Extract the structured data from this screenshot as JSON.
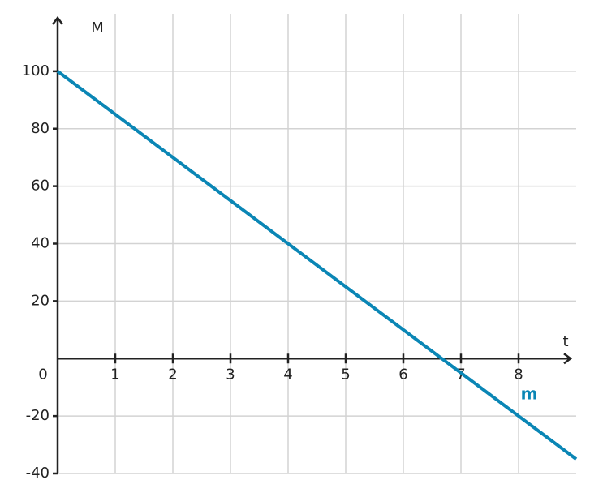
{
  "chart_data": {
    "type": "line",
    "x_label": "t",
    "y_label": "M",
    "x": [
      0,
      9
    ],
    "series": [
      {
        "name": "m",
        "color": "#0a86b5",
        "values": [
          100,
          -35
        ]
      }
    ],
    "xlim": [
      0,
      9
    ],
    "ylim": [
      -40,
      120
    ],
    "xticks": [
      1,
      2,
      3,
      4,
      5,
      6,
      7,
      8
    ],
    "yticks": [
      -40,
      -20,
      0,
      20,
      40,
      60,
      80,
      100
    ],
    "grid": true
  }
}
